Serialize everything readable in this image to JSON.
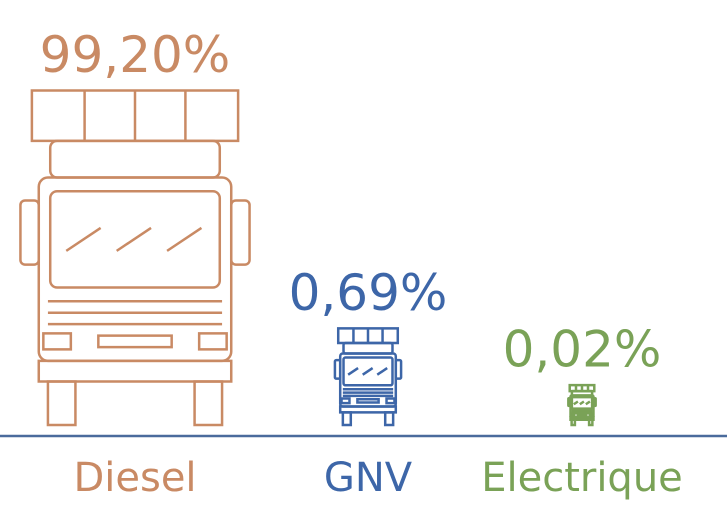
{
  "chart_data": {
    "type": "pictograph",
    "categories": [
      "Diesel",
      "GNV",
      "Electrique"
    ],
    "values": [
      99.2,
      0.69,
      0.02
    ],
    "value_labels": [
      "99,20%",
      "0,69%",
      "0,02%"
    ],
    "colors": [
      "#c98a64",
      "#3d66a8",
      "#7aa257"
    ],
    "axis_color": "#4a6b9c"
  }
}
